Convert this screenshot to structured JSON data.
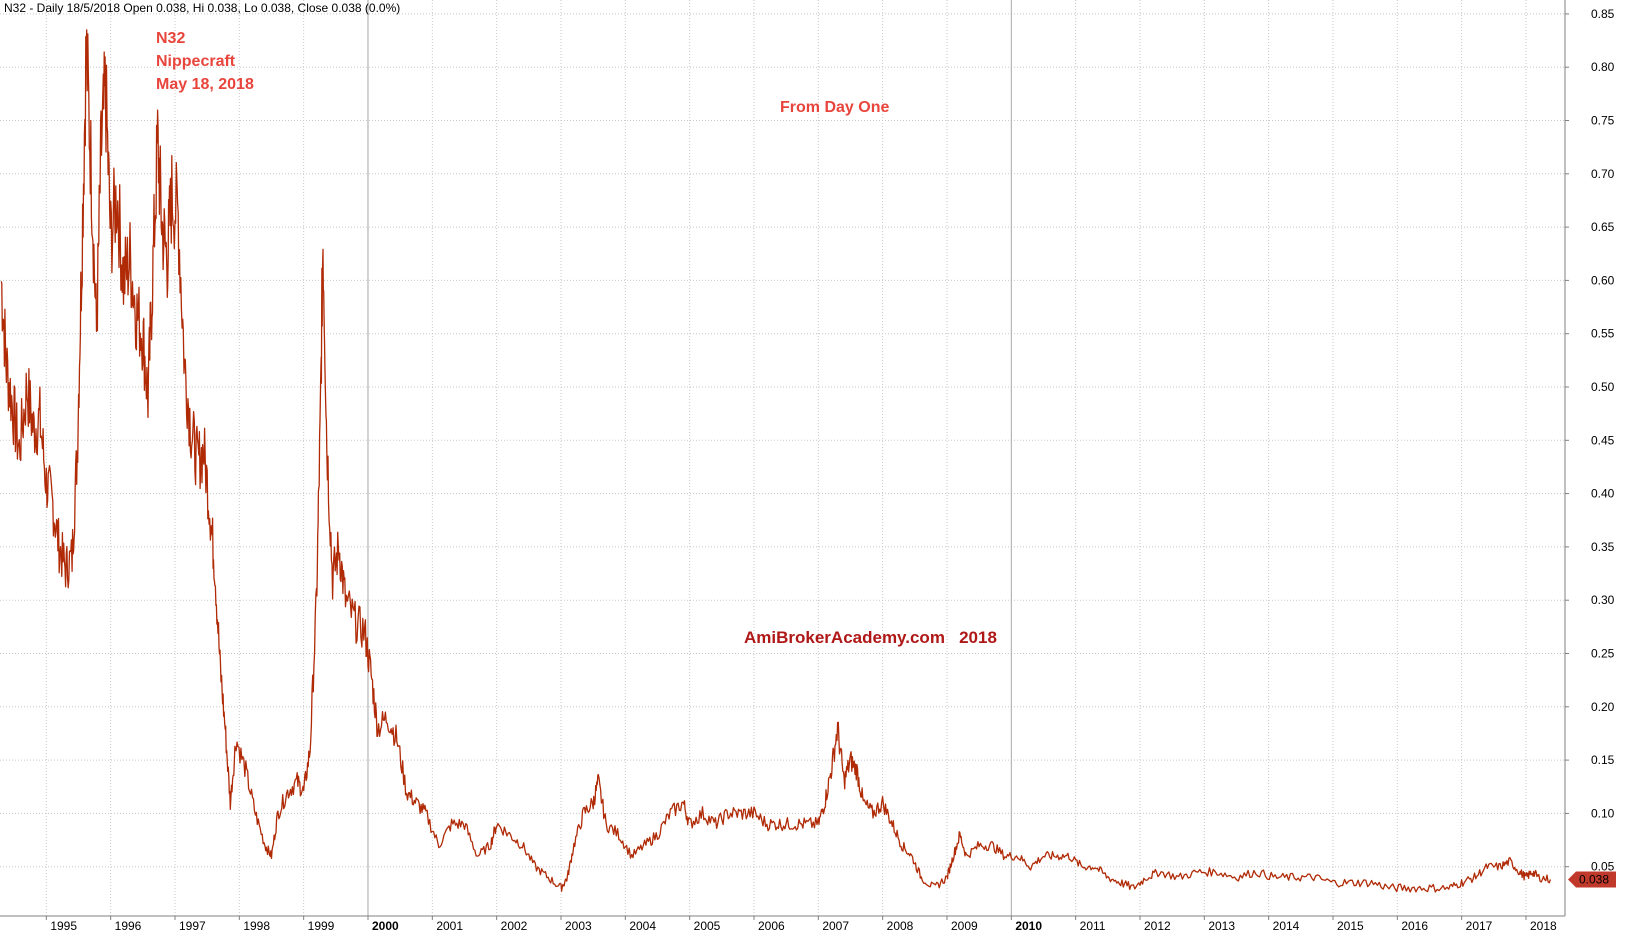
{
  "header": {
    "title": "N32 - Daily 18/5/2018 Open 0.038, Hi 0.038, Lo 0.038, Close 0.038 (0.0%)"
  },
  "annotations": {
    "symbol": "N32",
    "name": "Nippecraft",
    "date": "May 18, 2018",
    "subtitle": "From Day One",
    "watermark": "AmiBrokerAcademy.com   2018"
  },
  "last_price_label": "0.038",
  "colors": {
    "price_line": "#b02a06",
    "annotation": "#e8453c",
    "watermark": "#b01818",
    "grid": "#c8c8c8",
    "price_badge": "#c0392b"
  },
  "chart_data": {
    "type": "line",
    "ylim": [
      0.0,
      0.85
    ],
    "y_ticks": [
      "0.05",
      "0.10",
      "0.15",
      "0.20",
      "0.25",
      "0.30",
      "0.35",
      "0.40",
      "0.45",
      "0.50",
      "0.55",
      "0.60",
      "0.65",
      "0.70",
      "0.75",
      "0.80",
      "0.85"
    ],
    "x_ticks": [
      "1995",
      "1996",
      "1997",
      "1998",
      "1999",
      "2000",
      "2001",
      "2002",
      "2003",
      "2004",
      "2005",
      "2006",
      "2007",
      "2008",
      "2009",
      "2010",
      "2011",
      "2012",
      "2013",
      "2014",
      "2015",
      "2016",
      "2017",
      "2018"
    ],
    "x_ticks_bold": [
      "2000",
      "2010"
    ],
    "grid": true,
    "series": [
      {
        "values": [
          {
            "x": 1994.3,
            "y": 0.6
          },
          {
            "x": 1994.38,
            "y": 0.52
          },
          {
            "x": 1994.48,
            "y": 0.48
          },
          {
            "x": 1994.58,
            "y": 0.44
          },
          {
            "x": 1994.7,
            "y": 0.5
          },
          {
            "x": 1994.8,
            "y": 0.46
          },
          {
            "x": 1994.9,
            "y": 0.47
          },
          {
            "x": 1995.0,
            "y": 0.41
          },
          {
            "x": 1995.1,
            "y": 0.39
          },
          {
            "x": 1995.2,
            "y": 0.35
          },
          {
            "x": 1995.3,
            "y": 0.33
          },
          {
            "x": 1995.4,
            "y": 0.34
          },
          {
            "x": 1995.48,
            "y": 0.44
          },
          {
            "x": 1995.55,
            "y": 0.62
          },
          {
            "x": 1995.62,
            "y": 0.82
          },
          {
            "x": 1995.7,
            "y": 0.7
          },
          {
            "x": 1995.78,
            "y": 0.55
          },
          {
            "x": 1995.85,
            "y": 0.72
          },
          {
            "x": 1995.92,
            "y": 0.78
          },
          {
            "x": 1996.0,
            "y": 0.64
          },
          {
            "x": 1996.1,
            "y": 0.68
          },
          {
            "x": 1996.2,
            "y": 0.6
          },
          {
            "x": 1996.3,
            "y": 0.62
          },
          {
            "x": 1996.4,
            "y": 0.57
          },
          {
            "x": 1996.5,
            "y": 0.55
          },
          {
            "x": 1996.58,
            "y": 0.49
          },
          {
            "x": 1996.65,
            "y": 0.6
          },
          {
            "x": 1996.73,
            "y": 0.73
          },
          {
            "x": 1996.8,
            "y": 0.65
          },
          {
            "x": 1996.88,
            "y": 0.62
          },
          {
            "x": 1996.95,
            "y": 0.68
          },
          {
            "x": 1997.05,
            "y": 0.66
          },
          {
            "x": 1997.15,
            "y": 0.52
          },
          {
            "x": 1997.25,
            "y": 0.46
          },
          {
            "x": 1997.35,
            "y": 0.43
          },
          {
            "x": 1997.45,
            "y": 0.44
          },
          {
            "x": 1997.55,
            "y": 0.38
          },
          {
            "x": 1997.62,
            "y": 0.33
          },
          {
            "x": 1997.7,
            "y": 0.24
          },
          {
            "x": 1997.78,
            "y": 0.18
          },
          {
            "x": 1997.86,
            "y": 0.11
          },
          {
            "x": 1997.95,
            "y": 0.17
          },
          {
            "x": 1998.1,
            "y": 0.14
          },
          {
            "x": 1998.25,
            "y": 0.1
          },
          {
            "x": 1998.4,
            "y": 0.07
          },
          {
            "x": 1998.5,
            "y": 0.06
          },
          {
            "x": 1998.6,
            "y": 0.1
          },
          {
            "x": 1998.75,
            "y": 0.12
          },
          {
            "x": 1998.9,
            "y": 0.13
          },
          {
            "x": 1999.0,
            "y": 0.12
          },
          {
            "x": 1999.1,
            "y": 0.16
          },
          {
            "x": 1999.2,
            "y": 0.3
          },
          {
            "x": 1999.26,
            "y": 0.47
          },
          {
            "x": 1999.3,
            "y": 0.64
          },
          {
            "x": 1999.36,
            "y": 0.45
          },
          {
            "x": 1999.45,
            "y": 0.32
          },
          {
            "x": 1999.55,
            "y": 0.35
          },
          {
            "x": 1999.65,
            "y": 0.3
          },
          {
            "x": 1999.8,
            "y": 0.28
          },
          {
            "x": 1999.95,
            "y": 0.27
          },
          {
            "x": 2000.05,
            "y": 0.23
          },
          {
            "x": 2000.15,
            "y": 0.18
          },
          {
            "x": 2000.3,
            "y": 0.19
          },
          {
            "x": 2000.45,
            "y": 0.17
          },
          {
            "x": 2000.6,
            "y": 0.12
          },
          {
            "x": 2000.75,
            "y": 0.11
          },
          {
            "x": 2000.9,
            "y": 0.1
          },
          {
            "x": 2001.1,
            "y": 0.07
          },
          {
            "x": 2001.3,
            "y": 0.09
          },
          {
            "x": 2001.5,
            "y": 0.09
          },
          {
            "x": 2001.7,
            "y": 0.06
          },
          {
            "x": 2001.9,
            "y": 0.07
          },
          {
            "x": 2002.0,
            "y": 0.09
          },
          {
            "x": 2002.2,
            "y": 0.08
          },
          {
            "x": 2002.4,
            "y": 0.07
          },
          {
            "x": 2002.6,
            "y": 0.05
          },
          {
            "x": 2002.8,
            "y": 0.04
          },
          {
            "x": 2003.0,
            "y": 0.03
          },
          {
            "x": 2003.1,
            "y": 0.04
          },
          {
            "x": 2003.2,
            "y": 0.07
          },
          {
            "x": 2003.35,
            "y": 0.1
          },
          {
            "x": 2003.5,
            "y": 0.11
          },
          {
            "x": 2003.58,
            "y": 0.13
          },
          {
            "x": 2003.7,
            "y": 0.09
          },
          {
            "x": 2003.9,
            "y": 0.08
          },
          {
            "x": 2004.1,
            "y": 0.06
          },
          {
            "x": 2004.3,
            "y": 0.07
          },
          {
            "x": 2004.5,
            "y": 0.08
          },
          {
            "x": 2004.7,
            "y": 0.1
          },
          {
            "x": 2004.9,
            "y": 0.11
          },
          {
            "x": 2005.0,
            "y": 0.09
          },
          {
            "x": 2005.2,
            "y": 0.1
          },
          {
            "x": 2005.4,
            "y": 0.09
          },
          {
            "x": 2005.6,
            "y": 0.1
          },
          {
            "x": 2005.8,
            "y": 0.1
          },
          {
            "x": 2006.0,
            "y": 0.1
          },
          {
            "x": 2006.2,
            "y": 0.09
          },
          {
            "x": 2006.4,
            "y": 0.09
          },
          {
            "x": 2006.6,
            "y": 0.09
          },
          {
            "x": 2006.8,
            "y": 0.09
          },
          {
            "x": 2007.0,
            "y": 0.09
          },
          {
            "x": 2007.1,
            "y": 0.11
          },
          {
            "x": 2007.2,
            "y": 0.14
          },
          {
            "x": 2007.3,
            "y": 0.18
          },
          {
            "x": 2007.4,
            "y": 0.13
          },
          {
            "x": 2007.5,
            "y": 0.15
          },
          {
            "x": 2007.6,
            "y": 0.14
          },
          {
            "x": 2007.7,
            "y": 0.11
          },
          {
            "x": 2007.85,
            "y": 0.1
          },
          {
            "x": 2008.0,
            "y": 0.11
          },
          {
            "x": 2008.15,
            "y": 0.09
          },
          {
            "x": 2008.3,
            "y": 0.07
          },
          {
            "x": 2008.45,
            "y": 0.06
          },
          {
            "x": 2008.6,
            "y": 0.04
          },
          {
            "x": 2008.8,
            "y": 0.03
          },
          {
            "x": 2009.0,
            "y": 0.04
          },
          {
            "x": 2009.1,
            "y": 0.06
          },
          {
            "x": 2009.2,
            "y": 0.08
          },
          {
            "x": 2009.3,
            "y": 0.06
          },
          {
            "x": 2009.5,
            "y": 0.07
          },
          {
            "x": 2009.7,
            "y": 0.07
          },
          {
            "x": 2009.9,
            "y": 0.06
          },
          {
            "x": 2010.1,
            "y": 0.06
          },
          {
            "x": 2010.3,
            "y": 0.05
          },
          {
            "x": 2010.5,
            "y": 0.06
          },
          {
            "x": 2010.7,
            "y": 0.06
          },
          {
            "x": 2010.9,
            "y": 0.06
          },
          {
            "x": 2011.1,
            "y": 0.05
          },
          {
            "x": 2011.3,
            "y": 0.05
          },
          {
            "x": 2011.5,
            "y": 0.04
          },
          {
            "x": 2011.7,
            "y": 0.035
          },
          {
            "x": 2011.9,
            "y": 0.03
          },
          {
            "x": 2012.1,
            "y": 0.04
          },
          {
            "x": 2012.3,
            "y": 0.045
          },
          {
            "x": 2012.6,
            "y": 0.04
          },
          {
            "x": 2012.9,
            "y": 0.045
          },
          {
            "x": 2013.2,
            "y": 0.045
          },
          {
            "x": 2013.5,
            "y": 0.04
          },
          {
            "x": 2013.8,
            "y": 0.045
          },
          {
            "x": 2014.1,
            "y": 0.04
          },
          {
            "x": 2014.4,
            "y": 0.04
          },
          {
            "x": 2014.7,
            "y": 0.04
          },
          {
            "x": 2015.0,
            "y": 0.035
          },
          {
            "x": 2015.3,
            "y": 0.035
          },
          {
            "x": 2015.6,
            "y": 0.035
          },
          {
            "x": 2015.9,
            "y": 0.03
          },
          {
            "x": 2016.2,
            "y": 0.03
          },
          {
            "x": 2016.5,
            "y": 0.03
          },
          {
            "x": 2016.8,
            "y": 0.03
          },
          {
            "x": 2017.0,
            "y": 0.035
          },
          {
            "x": 2017.2,
            "y": 0.04
          },
          {
            "x": 2017.4,
            "y": 0.05
          },
          {
            "x": 2017.6,
            "y": 0.05
          },
          {
            "x": 2017.75,
            "y": 0.055
          },
          {
            "x": 2017.9,
            "y": 0.045
          },
          {
            "x": 2018.0,
            "y": 0.04
          },
          {
            "x": 2018.1,
            "y": 0.045
          },
          {
            "x": 2018.2,
            "y": 0.04
          },
          {
            "x": 2018.38,
            "y": 0.038
          }
        ]
      }
    ]
  }
}
